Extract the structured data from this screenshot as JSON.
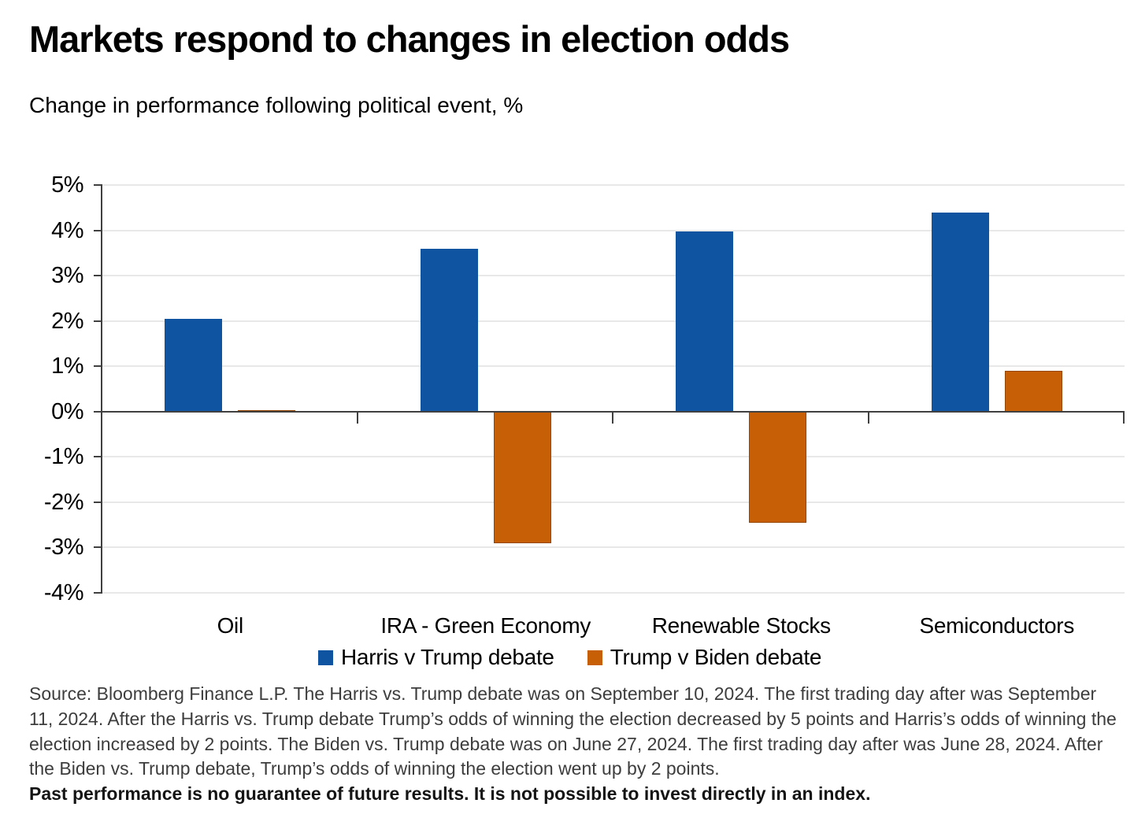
{
  "header": {
    "title": "Markets respond to changes in election odds",
    "subtitle": "Change in performance following political event, %"
  },
  "chart_data": {
    "type": "bar",
    "categories": [
      "Oil",
      "IRA - Green Economy",
      "Renewable Stocks",
      "Semiconductors"
    ],
    "series": [
      {
        "name": "Harris v Trump debate",
        "color": "#0e54a0",
        "values": [
          2.05,
          3.6,
          3.97,
          4.4
        ]
      },
      {
        "name": "Trump v Biden debate",
        "color": "#c65f06",
        "values": [
          0.03,
          -2.9,
          -2.45,
          0.9
        ]
      }
    ],
    "ylabel": "",
    "xlabel": "",
    "ylim": [
      -4,
      5
    ],
    "ytick_step": 1,
    "ytick_suffix": "%",
    "grid": "horizontal",
    "grid_color": "#e8e8e8",
    "axis_color": "#404040",
    "legend_position": "bottom-center"
  },
  "footer": {
    "source_text": "Source: Bloomberg Finance L.P. The Harris vs. Trump debate was on September 10, 2024. The first trading day after was September 11, 2024. After the Harris vs. Trump debate Trump’s odds of winning the election decreased by 5 points and Harris’s odds of winning the election increased by 2 points. The Biden vs. Trump debate was on June 27, 2024. The first trading day after was June 28, 2024. After the Biden vs. Trump debate, Trump’s odds of winning the election went up by 2 points.",
    "disclaimer": "Past performance is no guarantee of future results. It is not possible to invest directly in an index."
  }
}
